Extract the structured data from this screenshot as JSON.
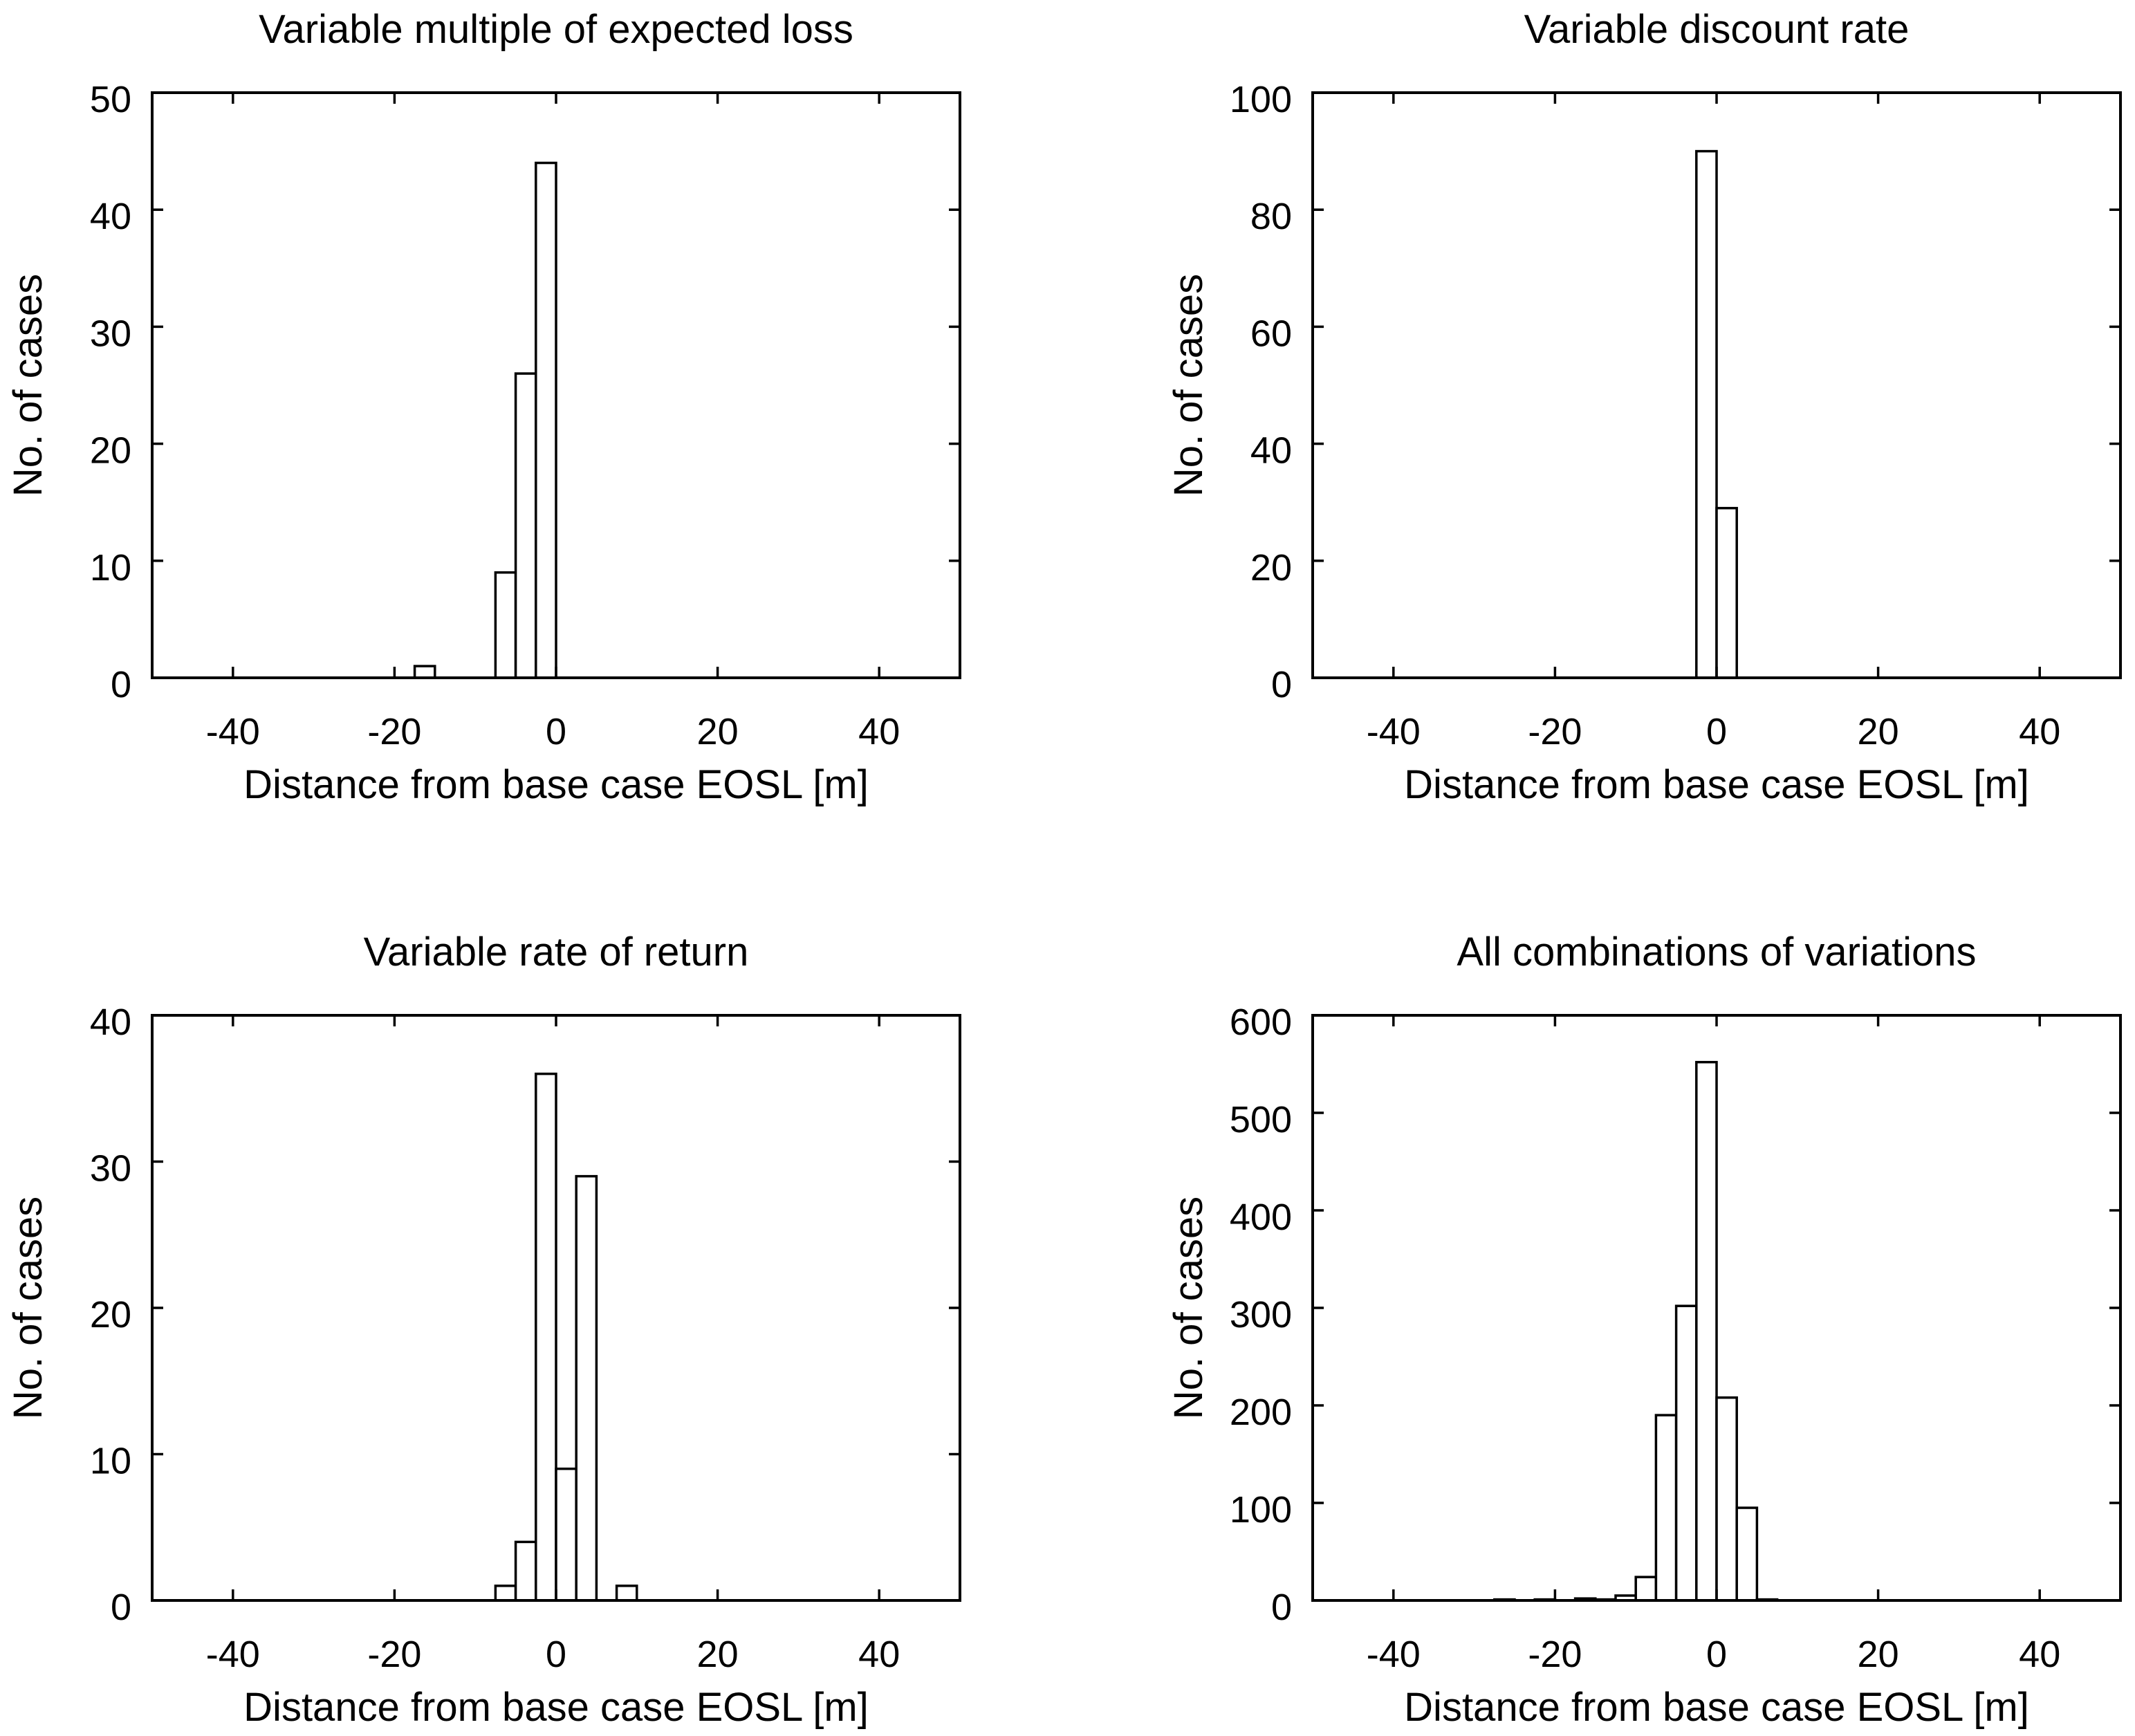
{
  "chart_data": [
    {
      "type": "bar",
      "title": "Variable multiple of expected loss",
      "xlabel": "Distance from base case EOSL [m]",
      "ylabel": "No. of cases",
      "xlim": [
        -50,
        50
      ],
      "ylim": [
        0,
        50
      ],
      "xticks": [
        -40,
        -20,
        0,
        20,
        40
      ],
      "yticks": [
        0,
        10,
        20,
        30,
        40,
        50
      ],
      "bin_width": 2.5,
      "bins": [
        {
          "center": -16.25,
          "value": 1
        },
        {
          "center": -6.25,
          "value": 9
        },
        {
          "center": -3.75,
          "value": 26
        },
        {
          "center": -1.25,
          "value": 44
        }
      ]
    },
    {
      "type": "bar",
      "title": "Variable discount rate",
      "xlabel": "Distance from base case EOSL [m]",
      "ylabel": "No. of cases",
      "xlim": [
        -50,
        50
      ],
      "ylim": [
        0,
        100
      ],
      "xticks": [
        -40,
        -20,
        0,
        20,
        40
      ],
      "yticks": [
        0,
        20,
        40,
        60,
        80,
        100
      ],
      "bin_width": 2.5,
      "bins": [
        {
          "center": -1.25,
          "value": 1
        },
        {
          "center": -1.25,
          "value": 90
        },
        {
          "center": 1.25,
          "value": 29
        }
      ]
    },
    {
      "type": "bar",
      "title": "Variable rate of return",
      "xlabel": "Distance from base case EOSL [m]",
      "ylabel": "No. of cases",
      "xlim": [
        -50,
        50
      ],
      "ylim": [
        0,
        40
      ],
      "xticks": [
        -40,
        -20,
        0,
        20,
        40
      ],
      "yticks": [
        0,
        10,
        20,
        30,
        40
      ],
      "bin_width": 2.5,
      "bins": [
        {
          "center": -6.25,
          "value": 1
        },
        {
          "center": -3.75,
          "value": 4
        },
        {
          "center": -1.25,
          "value": 36
        },
        {
          "center": 1.25,
          "value": 9
        },
        {
          "center": 3.75,
          "value": 29
        },
        {
          "center": 8.75,
          "value": 1
        }
      ]
    },
    {
      "type": "bar",
      "title": "All combinations of variations",
      "xlabel": "Distance from base case EOSL [m]",
      "ylabel": "No. of cases",
      "xlim": [
        -50,
        50
      ],
      "ylim": [
        0,
        600
      ],
      "xticks": [
        -40,
        -20,
        0,
        20,
        40
      ],
      "yticks": [
        0,
        100,
        200,
        300,
        400,
        500,
        600
      ],
      "bin_width": 2.5,
      "bins": [
        {
          "center": -26.25,
          "value": 1
        },
        {
          "center": -21.25,
          "value": 1
        },
        {
          "center": -16.25,
          "value": 2
        },
        {
          "center": -13.75,
          "value": 1
        },
        {
          "center": -11.25,
          "value": 5
        },
        {
          "center": -8.75,
          "value": 24
        },
        {
          "center": -6.25,
          "value": 190
        },
        {
          "center": -3.75,
          "value": 302
        },
        {
          "center": -1.25,
          "value": 552
        },
        {
          "center": 1.25,
          "value": 208
        },
        {
          "center": 3.75,
          "value": 95
        },
        {
          "center": 6.25,
          "value": 1
        }
      ]
    }
  ]
}
